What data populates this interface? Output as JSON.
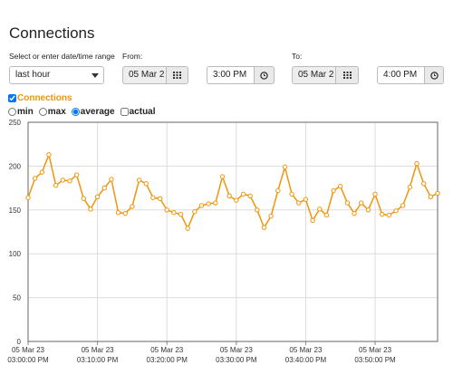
{
  "header": {
    "title": "Connections"
  },
  "form": {
    "range_label": "Select or enter date/time range",
    "range_value": "last hour",
    "from_label": "From:",
    "from_date": "05 Mar 2",
    "from_time": "3:00 PM",
    "to_label": "To:",
    "to_date": "05 Mar 2",
    "to_time": "4:00 PM"
  },
  "options": [
    {
      "label": "min",
      "kind": "radio",
      "checked": false
    },
    {
      "label": "max",
      "kind": "radio",
      "checked": false
    },
    {
      "label": "average",
      "kind": "radio",
      "checked": true
    },
    {
      "label": "actual",
      "kind": "checkbox",
      "checked": false
    }
  ],
  "chart_data": {
    "type": "line",
    "x": [
      0,
      1,
      2,
      3,
      4,
      5,
      6,
      7,
      8,
      9,
      10,
      11,
      12,
      13,
      14,
      15,
      16,
      17,
      18,
      19,
      20,
      21,
      22,
      23,
      24,
      25,
      26,
      27,
      28,
      29,
      30,
      31,
      32,
      33,
      34,
      35,
      36,
      37,
      38,
      39,
      40,
      41,
      42,
      43,
      44,
      45,
      46,
      47,
      48,
      49,
      50,
      51,
      52,
      53,
      54,
      55,
      56,
      57,
      58,
      59
    ],
    "series": [
      {
        "name": "Connections",
        "color": "#f0950c",
        "checked": true,
        "values": [
          164,
          186,
          193,
          213,
          178,
          184,
          183,
          190,
          163,
          151,
          165,
          175,
          185,
          147,
          146,
          154,
          184,
          180,
          164,
          163,
          150,
          147,
          145,
          129,
          148,
          155,
          157,
          158,
          188,
          166,
          161,
          168,
          166,
          150,
          130,
          143,
          172,
          199,
          168,
          158,
          162,
          138,
          151,
          144,
          172,
          177,
          158,
          146,
          158,
          150,
          168,
          145,
          144,
          149,
          155,
          176,
          203,
          180,
          165,
          169
        ]
      }
    ],
    "xlim": [
      0,
      59
    ],
    "xticks": [
      {
        "value": 0,
        "label": [
          "05 Mar 23",
          "03:00:00 PM"
        ]
      },
      {
        "value": 10,
        "label": [
          "05 Mar 23",
          "03:10:00 PM"
        ]
      },
      {
        "value": 20,
        "label": [
          "05 Mar 23",
          "03:20:00 PM"
        ]
      },
      {
        "value": 30,
        "label": [
          "05 Mar 23",
          "03:30:00 PM"
        ]
      },
      {
        "value": 40,
        "label": [
          "05 Mar 23",
          "03:40:00 PM"
        ]
      },
      {
        "value": 50,
        "label": [
          "05 Mar 23",
          "03:50:00 PM"
        ]
      }
    ],
    "ylim": [
      0,
      250
    ],
    "yticks": [
      0,
      50,
      100,
      150,
      200,
      250
    ],
    "grid": true
  }
}
